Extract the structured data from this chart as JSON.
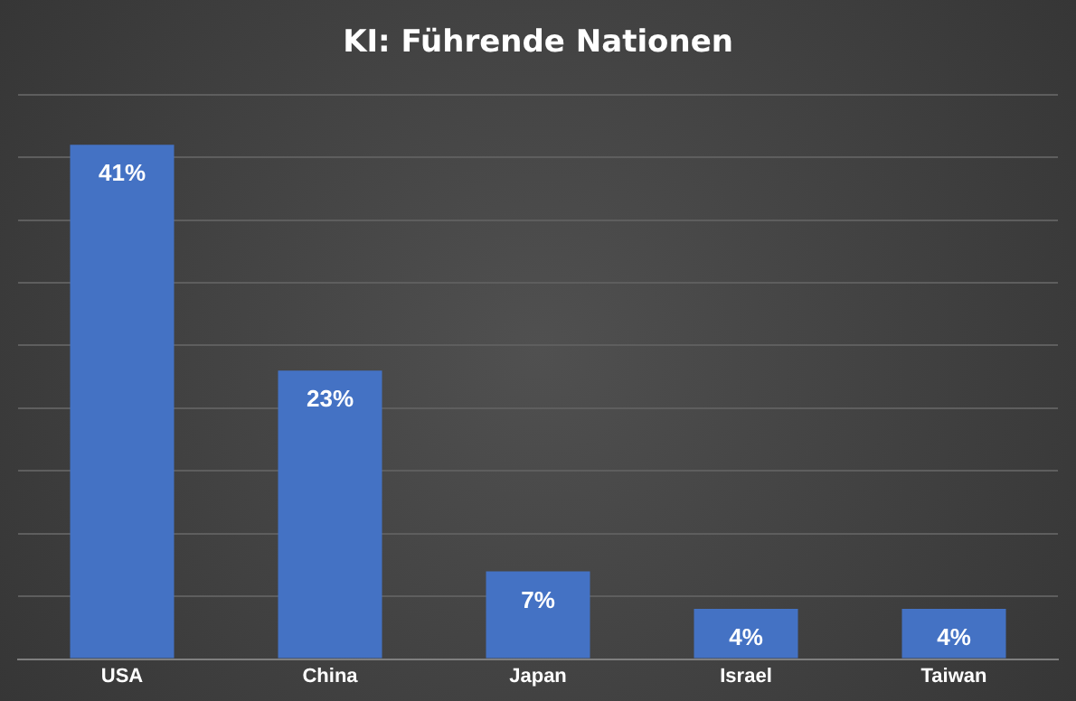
{
  "chart_data": {
    "type": "bar",
    "title": "KI: Führende Nationen",
    "categories": [
      "USA",
      "China",
      "Japan",
      "Israel",
      "Taiwan"
    ],
    "values": [
      41,
      23,
      7,
      4,
      4
    ],
    "value_labels": [
      "41%",
      "23%",
      "7%",
      "4%",
      "4%"
    ],
    "color": "#4472c4",
    "ylim": [
      0,
      45
    ],
    "yticks": [
      {
        "value": 0,
        "label": null
      },
      {
        "value": 5,
        "label": null
      },
      {
        "value": 10,
        "label": null
      },
      {
        "value": 15,
        "label": null
      },
      {
        "value": 20,
        "label": null
      },
      {
        "value": 25,
        "label": null
      },
      {
        "value": 30,
        "label": null
      },
      {
        "value": 35,
        "label": null
      },
      {
        "value": 40,
        "label": null
      },
      {
        "value": 45,
        "label": null
      }
    ],
    "grid": "y",
    "tick_labels": "x"
  }
}
